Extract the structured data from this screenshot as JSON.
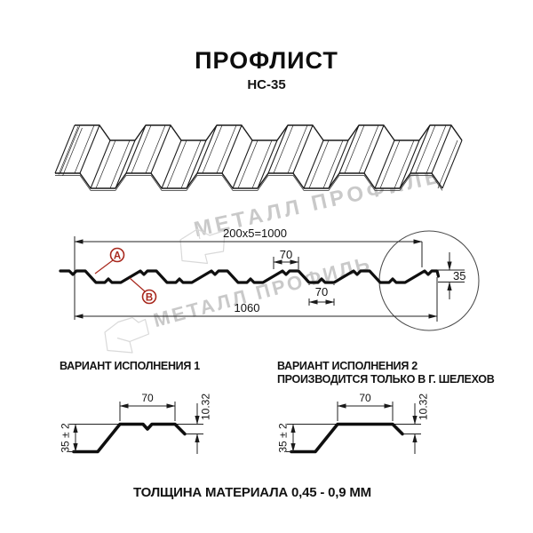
{
  "header": {
    "title": "ПРОФЛИСТ",
    "subtitle": "НС-35"
  },
  "watermark": {
    "brand_text": "МЕТАЛЛ ПРОФИЛЬ"
  },
  "cross_section": {
    "dim_pitch_total": "200x5=1000",
    "dim_crest_width": "70",
    "dim_valley_width": "70",
    "dim_overall_width": "1060",
    "dim_height": "35",
    "marker_a": "А",
    "marker_b": "В"
  },
  "variants": {
    "variant1": {
      "title": "ВАРИАНТ ИСПОЛНЕНИЯ 1",
      "dim_crest": "70",
      "dim_edge_drop": "10.32",
      "dim_height_tol": "35 ± 2"
    },
    "variant2": {
      "title": "ВАРИАНТ ИСПОЛНЕНИЯ 2",
      "subtitle": "ПРОИЗВОДИТСЯ ТОЛЬКО В Г. ШЕЛЕХОВ",
      "dim_crest": "70",
      "dim_edge_drop": "10.32",
      "dim_height_tol": "35 ± 2"
    }
  },
  "footer": {
    "material_thickness": "ТОЛЩИНА МАТЕРИАЛА 0,45 - 0,9 ММ"
  },
  "colors": {
    "line": "#1a1a1a",
    "accent_red": "#a8281d",
    "watermark_gray": "#c9c9c9"
  }
}
